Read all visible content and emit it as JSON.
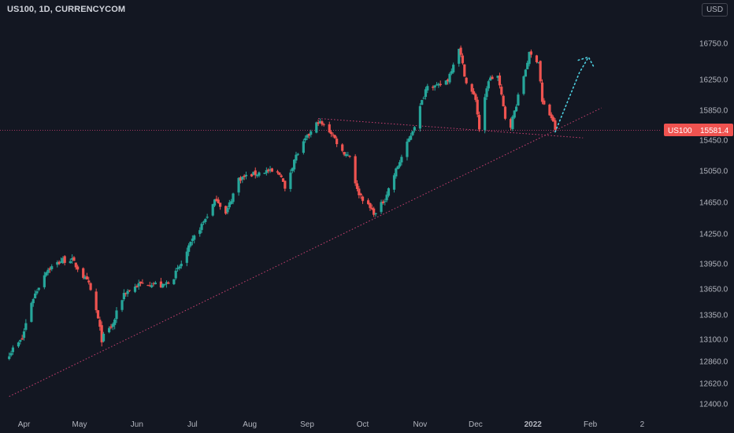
{
  "header": {
    "title": "US100, 1D, CURRENCYCOM",
    "currency": "USD"
  },
  "price_label": {
    "symbol": "US100",
    "value": "15581.4",
    "color": "#f05350"
  },
  "colors": {
    "up": "#26a69a",
    "down": "#ef5350",
    "background": "#131722",
    "axis_text": "#b2b5be",
    "trendline": "#e0457b",
    "projection": "#4dd0e1"
  },
  "chart_data": {
    "type": "candlestick",
    "title": "US100, 1D, CURRENCYCOM",
    "x_ticks": [
      "Apr",
      "May",
      "Jun",
      "Jul",
      "Aug",
      "Sep",
      "Oct",
      "Nov",
      "Dec",
      "2022",
      "Feb",
      "2"
    ],
    "y_ticks": [
      "16750.0",
      "16250.0",
      "15850.0",
      "15450.0",
      "15050.0",
      "14650.0",
      "14250.0",
      "13950.0",
      "13650.0",
      "13350.0",
      "13100.0",
      "12860.0",
      "12620.0",
      "12400.0"
    ],
    "current_price": 15581.4,
    "anchors": [
      [
        "2021-03-24",
        12950
      ],
      [
        "2021-03-31",
        13100
      ],
      [
        "2021-04-05",
        13500
      ],
      [
        "2021-04-13",
        13870
      ],
      [
        "2021-04-21",
        13980
      ],
      [
        "2021-04-26",
        14000
      ],
      [
        "2021-04-30",
        13900
      ],
      [
        "2021-05-06",
        13700
      ],
      [
        "2021-05-10",
        13400
      ],
      [
        "2021-05-13",
        13100
      ],
      [
        "2021-05-19",
        13250
      ],
      [
        "2021-05-25",
        13600
      ],
      [
        "2021-06-02",
        13700
      ],
      [
        "2021-06-09",
        13720
      ],
      [
        "2021-06-15",
        13680
      ],
      [
        "2021-06-21",
        13800
      ],
      [
        "2021-06-29",
        14100
      ],
      [
        "2021-07-07",
        14400
      ],
      [
        "2021-07-14",
        14700
      ],
      [
        "2021-07-19",
        14500
      ],
      [
        "2021-07-26",
        14950
      ],
      [
        "2021-08-02",
        15000
      ],
      [
        "2021-08-10",
        15050
      ],
      [
        "2021-08-18",
        15000
      ],
      [
        "2021-08-20",
        14800
      ],
      [
        "2021-08-25",
        15200
      ],
      [
        "2021-08-31",
        15450
      ],
      [
        "2021-09-07",
        15700
      ],
      [
        "2021-09-14",
        15550
      ],
      [
        "2021-09-20",
        15300
      ],
      [
        "2021-09-24",
        15250
      ],
      [
        "2021-09-28",
        14800
      ],
      [
        "2021-10-04",
        14600
      ],
      [
        "2021-10-08",
        14500
      ],
      [
        "2021-10-13",
        14700
      ],
      [
        "2021-10-18",
        15000
      ],
      [
        "2021-10-25",
        15400
      ],
      [
        "2021-10-29",
        15650
      ],
      [
        "2021-11-05",
        16200
      ],
      [
        "2021-11-10",
        16150
      ],
      [
        "2021-11-16",
        16250
      ],
      [
        "2021-11-22",
        16700
      ],
      [
        "2021-11-26",
        16200
      ],
      [
        "2021-12-01",
        16000
      ],
      [
        "2021-12-03",
        15600
      ],
      [
        "2021-12-08",
        16250
      ],
      [
        "2021-12-13",
        16300
      ],
      [
        "2021-12-17",
        15750
      ],
      [
        "2021-12-20",
        15650
      ],
      [
        "2021-12-27",
        16300
      ],
      [
        "2021-12-30",
        16600
      ],
      [
        "2022-01-04",
        16500
      ],
      [
        "2022-01-06",
        15950
      ],
      [
        "2022-01-11",
        15750
      ],
      [
        "2022-01-13",
        15600
      ]
    ],
    "support_trendline": [
      [
        "2021-03-24",
        12480
      ],
      [
        "2022-02-07",
        15880
      ]
    ],
    "resistance_trendline": [
      [
        "2021-09-07",
        15740
      ],
      [
        "2022-01-28",
        15480
      ]
    ],
    "horizontal_level": 15581.4,
    "projection": [
      [
        "2022-01-13",
        15560
      ],
      [
        "2022-01-26",
        16340
      ],
      [
        "2022-01-31",
        16560
      ]
    ],
    "grid": false,
    "legend": "none"
  }
}
